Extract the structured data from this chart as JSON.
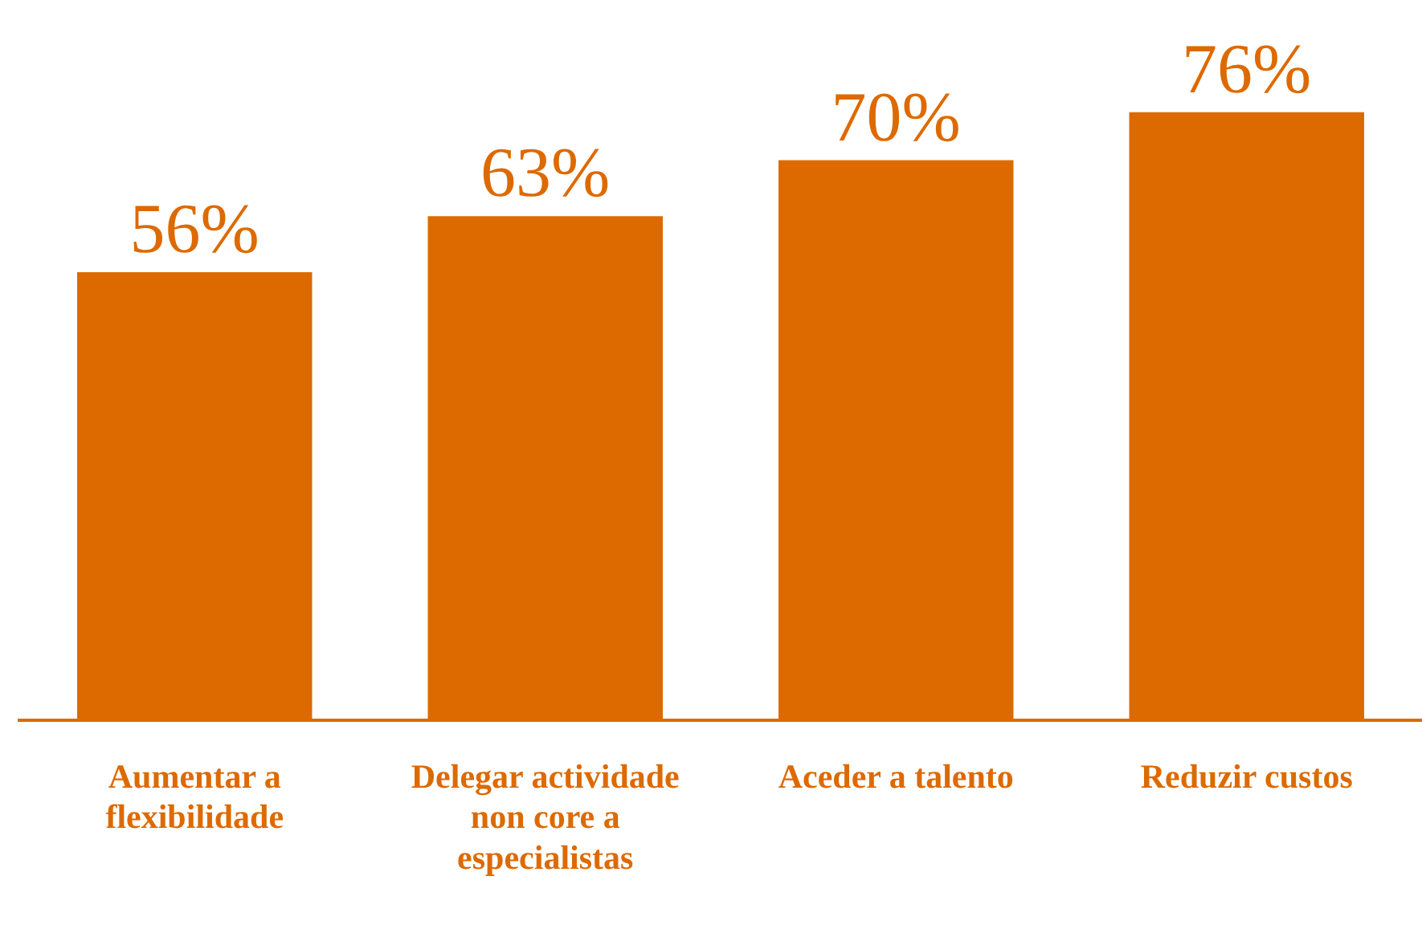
{
  "chart_data": {
    "type": "bar",
    "categories": [
      "Aumentar a flexibilidade",
      "Delegar actividade non core a especialistas",
      "Aceder a talento",
      "Reduzir custos"
    ],
    "values": [
      56,
      63,
      70,
      76
    ],
    "value_labels": [
      "56%",
      "63%",
      "70%",
      "76%"
    ],
    "color": "#dd6a00",
    "tick_labels": "x",
    "grid": false,
    "legend": false
  }
}
